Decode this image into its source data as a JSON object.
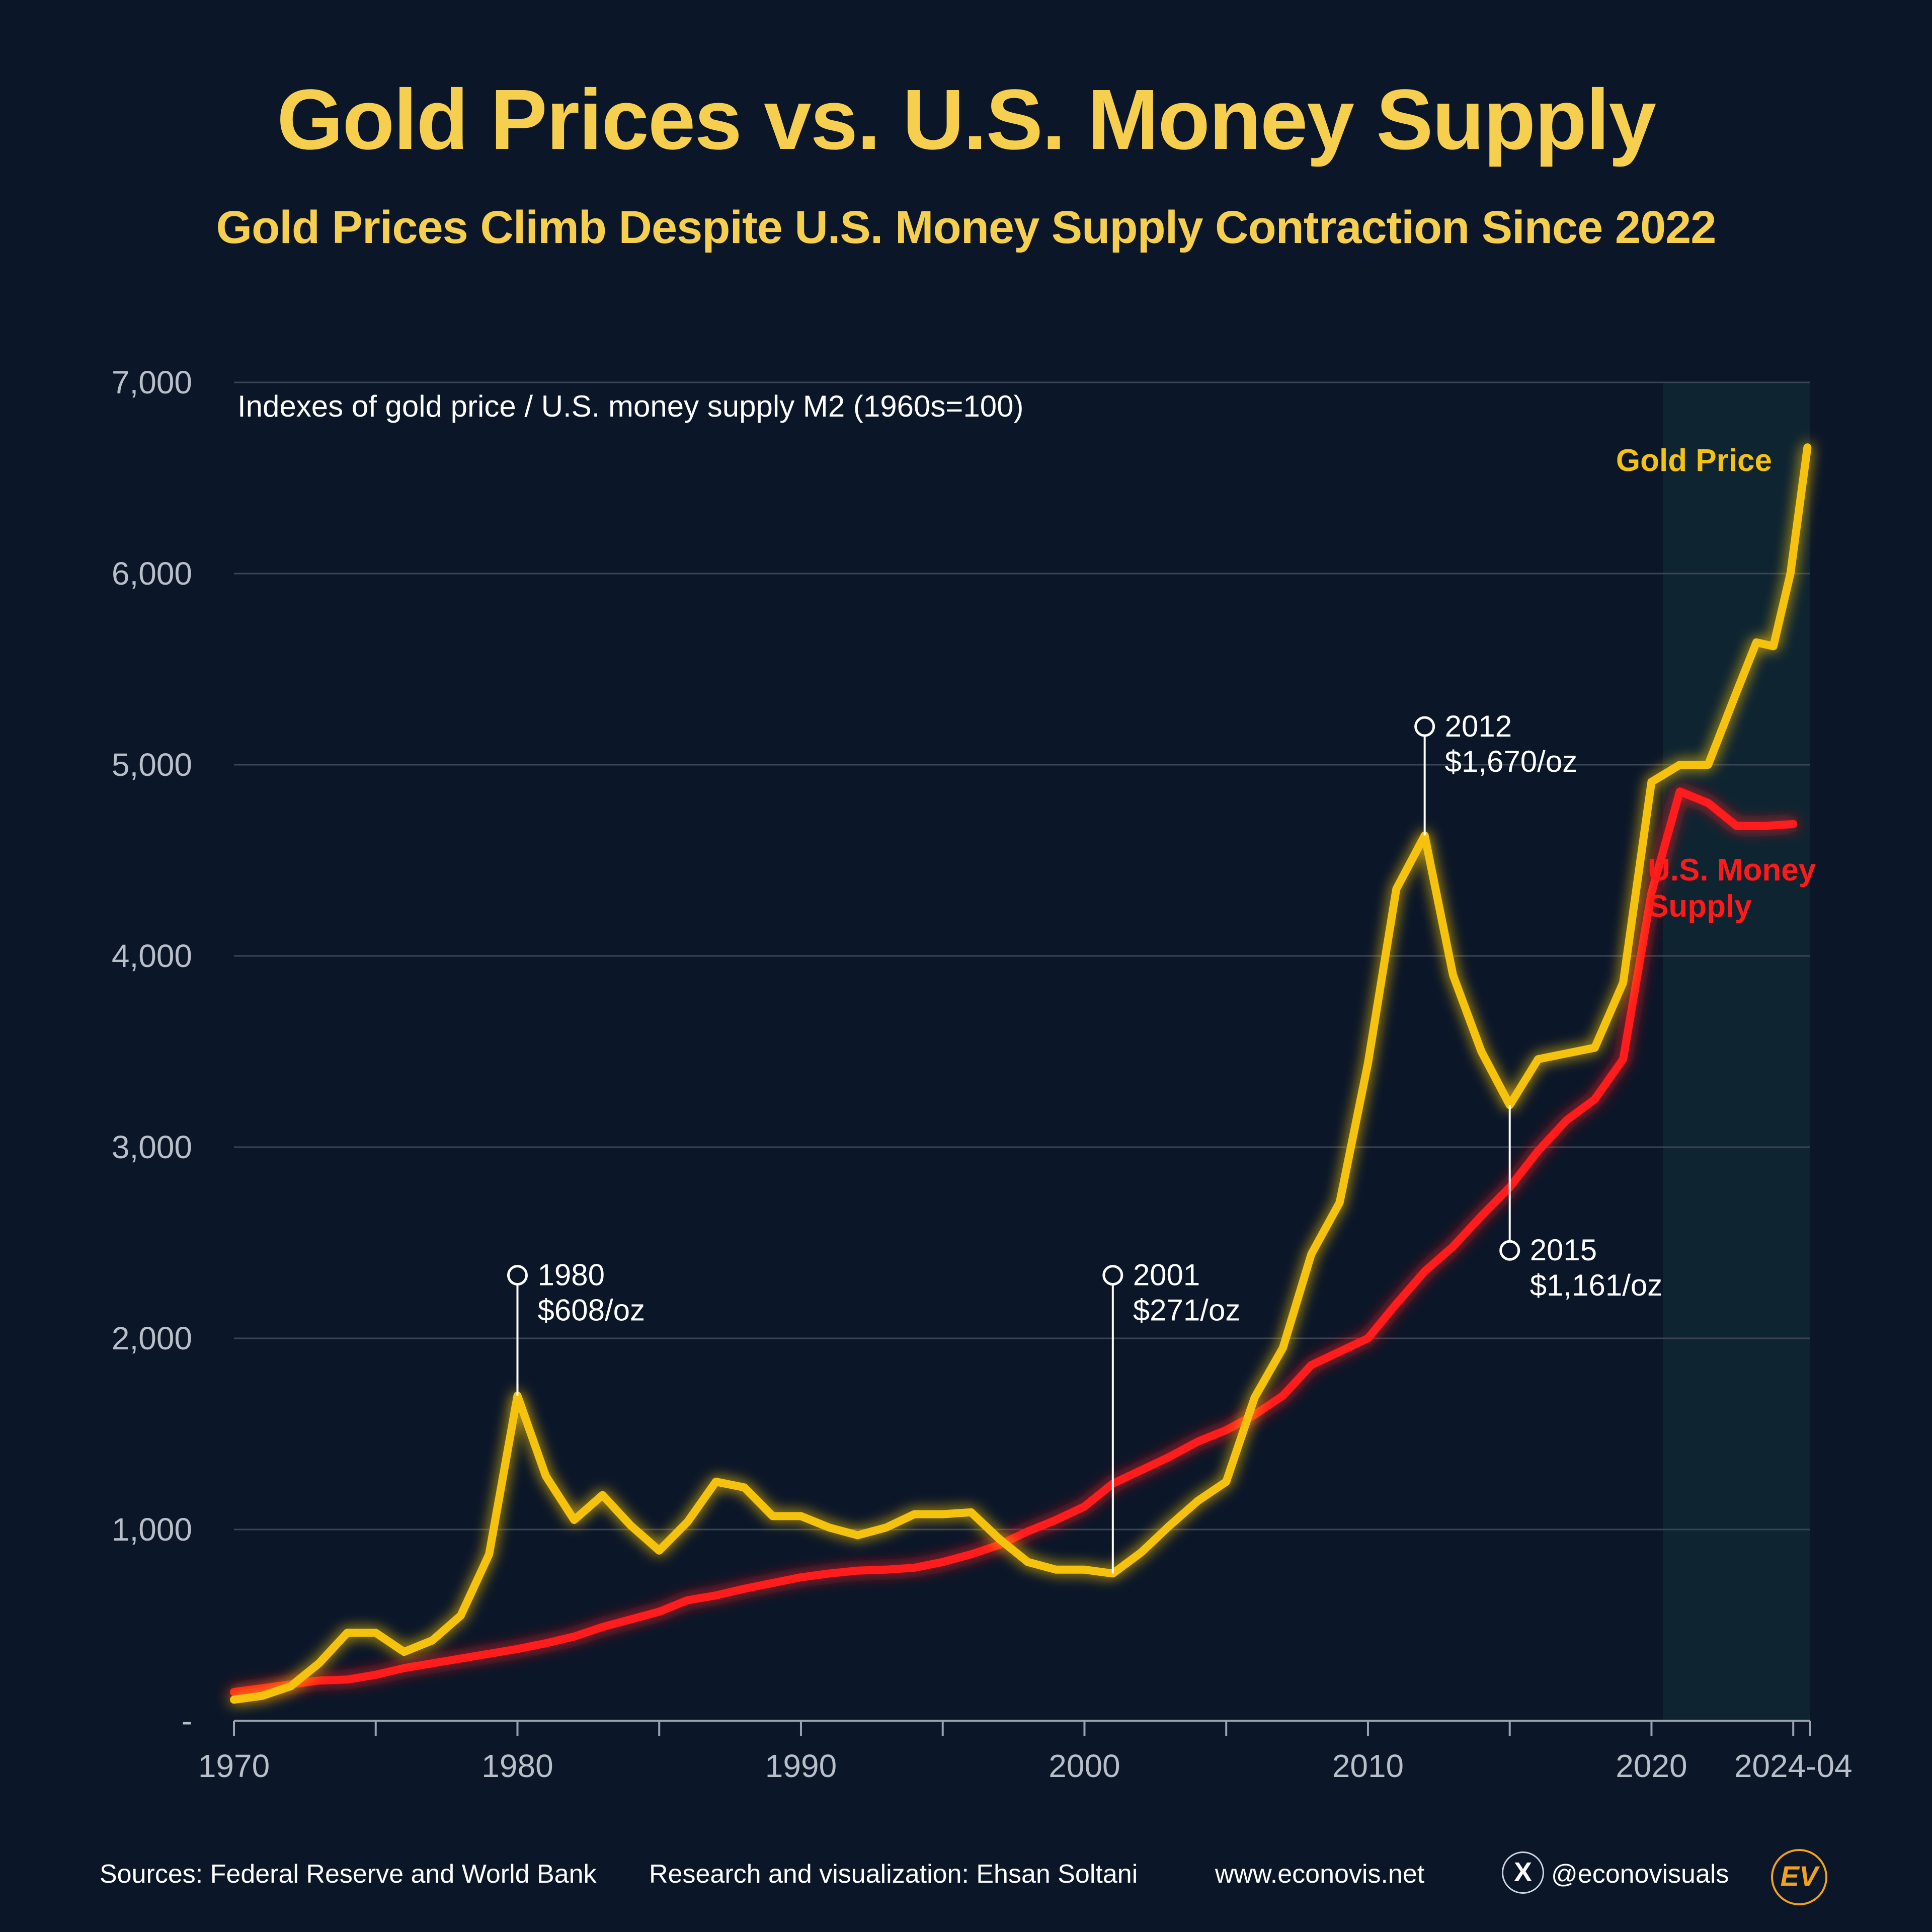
{
  "title": "Gold Prices vs. U.S. Money Supply",
  "subtitle": "Gold Prices Climb Despite U.S. Money Supply Contraction Since 2022",
  "chart_data": {
    "type": "line",
    "ylabel": "Indexes of gold price / U.S. money supply M2 (1960s=100)",
    "ylim": [
      0,
      7000
    ],
    "xlim": [
      1970,
      2025.6
    ],
    "yticks": [
      {
        "value": 0,
        "label": "-"
      },
      {
        "value": 1000,
        "label": "1,000"
      },
      {
        "value": 2000,
        "label": "2,000"
      },
      {
        "value": 3000,
        "label": "3,000"
      },
      {
        "value": 4000,
        "label": "4,000"
      },
      {
        "value": 5000,
        "label": "5,000"
      },
      {
        "value": 6000,
        "label": "6,000"
      },
      {
        "value": 7000,
        "label": "7,000"
      }
    ],
    "xticks": [
      {
        "value": 1970,
        "label": "1970"
      },
      {
        "value": 1980,
        "label": "1980"
      },
      {
        "value": 1990,
        "label": "1990"
      },
      {
        "value": 2000,
        "label": "2000"
      },
      {
        "value": 2010,
        "label": "2010"
      },
      {
        "value": 2020,
        "label": "2020"
      },
      {
        "value": 2025,
        "label": "2024-04"
      }
    ],
    "highlight_range": [
      2020.4,
      2025.6
    ],
    "series": [
      {
        "name": "Gold Price",
        "color": "#f5c211",
        "points": [
          [
            1970,
            110
          ],
          [
            1971,
            130
          ],
          [
            1972,
            180
          ],
          [
            1973,
            300
          ],
          [
            1974,
            460
          ],
          [
            1975,
            460
          ],
          [
            1976,
            360
          ],
          [
            1977,
            420
          ],
          [
            1978,
            550
          ],
          [
            1979,
            870
          ],
          [
            1980,
            1700
          ],
          [
            1981,
            1280
          ],
          [
            1982,
            1050
          ],
          [
            1983,
            1180
          ],
          [
            1984,
            1020
          ],
          [
            1985,
            890
          ],
          [
            1986,
            1040
          ],
          [
            1987,
            1250
          ],
          [
            1988,
            1220
          ],
          [
            1989,
            1070
          ],
          [
            1990,
            1070
          ],
          [
            1991,
            1010
          ],
          [
            1992,
            970
          ],
          [
            1993,
            1010
          ],
          [
            1994,
            1080
          ],
          [
            1995,
            1080
          ],
          [
            1996,
            1090
          ],
          [
            1997,
            950
          ],
          [
            1998,
            830
          ],
          [
            1999,
            790
          ],
          [
            2000,
            790
          ],
          [
            2001,
            770
          ],
          [
            2002,
            880
          ],
          [
            2003,
            1020
          ],
          [
            2004,
            1150
          ],
          [
            2005,
            1250
          ],
          [
            2006,
            1690
          ],
          [
            2007,
            1950
          ],
          [
            2008,
            2440
          ],
          [
            2009,
            2710
          ],
          [
            2010,
            3440
          ],
          [
            2011,
            4350
          ],
          [
            2012,
            4630
          ],
          [
            2013,
            3900
          ],
          [
            2014,
            3500
          ],
          [
            2015,
            3220
          ],
          [
            2016,
            3460
          ],
          [
            2017,
            3490
          ],
          [
            2018,
            3520
          ],
          [
            2019,
            3860
          ],
          [
            2020,
            4910
          ],
          [
            2021,
            5000
          ],
          [
            2022,
            5000
          ],
          [
            2023,
            5380
          ],
          [
            2023.7,
            5640
          ],
          [
            2024.3,
            5620
          ],
          [
            2024.9,
            6000
          ],
          [
            2025.5,
            6660
          ]
        ]
      },
      {
        "name": "U.S. Money Supply",
        "color": "#ff1a1a",
        "points": [
          [
            1970,
            150
          ],
          [
            1971,
            170
          ],
          [
            1972,
            190
          ],
          [
            1973,
            210
          ],
          [
            1974,
            215
          ],
          [
            1975,
            240
          ],
          [
            1976,
            275
          ],
          [
            1977,
            300
          ],
          [
            1978,
            325
          ],
          [
            1979,
            350
          ],
          [
            1980,
            375
          ],
          [
            1981,
            405
          ],
          [
            1982,
            440
          ],
          [
            1983,
            490
          ],
          [
            1984,
            530
          ],
          [
            1985,
            570
          ],
          [
            1986,
            630
          ],
          [
            1987,
            655
          ],
          [
            1988,
            690
          ],
          [
            1989,
            720
          ],
          [
            1990,
            750
          ],
          [
            1991,
            770
          ],
          [
            1992,
            785
          ],
          [
            1993,
            790
          ],
          [
            1994,
            800
          ],
          [
            1995,
            830
          ],
          [
            1996,
            870
          ],
          [
            1997,
            920
          ],
          [
            1998,
            990
          ],
          [
            1999,
            1050
          ],
          [
            2000,
            1120
          ],
          [
            2001,
            1240
          ],
          [
            2002,
            1310
          ],
          [
            2003,
            1380
          ],
          [
            2004,
            1460
          ],
          [
            2005,
            1520
          ],
          [
            2006,
            1600
          ],
          [
            2007,
            1700
          ],
          [
            2008,
            1860
          ],
          [
            2009,
            1930
          ],
          [
            2010,
            2000
          ],
          [
            2011,
            2180
          ],
          [
            2012,
            2350
          ],
          [
            2013,
            2480
          ],
          [
            2014,
            2640
          ],
          [
            2015,
            2790
          ],
          [
            2016,
            2980
          ],
          [
            2017,
            3140
          ],
          [
            2018,
            3250
          ],
          [
            2019,
            3460
          ],
          [
            2020,
            4330
          ],
          [
            2021,
            4860
          ],
          [
            2022,
            4800
          ],
          [
            2023,
            4680
          ],
          [
            2024,
            4680
          ],
          [
            2025,
            4690
          ]
        ]
      }
    ],
    "series_labels": [
      {
        "text": "Gold Price",
        "series": "Gold Price"
      },
      {
        "text": "U.S. Money",
        "series": "U.S. Money Supply"
      },
      {
        "text": "Supply",
        "series": "U.S. Money Supply"
      }
    ],
    "annotations": [
      {
        "series": "Gold Price",
        "year": 1980,
        "value": 1700,
        "marker_value": 2330,
        "label_year": "1980",
        "label_price": "$608/oz",
        "direction": "up"
      },
      {
        "series": "Gold Price",
        "year": 2001,
        "value": 770,
        "marker_value": 2330,
        "label_year": "2001",
        "label_price": "$271/oz",
        "direction": "up"
      },
      {
        "series": "Gold Price",
        "year": 2012,
        "value": 4630,
        "marker_value": 5200,
        "label_year": "2012",
        "label_price": "$1,670/oz",
        "direction": "up"
      },
      {
        "series": "Gold Price",
        "year": 2015,
        "value": 3220,
        "marker_value": 2460,
        "label_year": "2015",
        "label_price": "$1,161/oz",
        "direction": "down"
      }
    ]
  },
  "footer": {
    "sources": "Sources: Federal Reserve and World Bank",
    "credit": "Research and visualization: Ehsan Soltani",
    "website": "www.econovis.net",
    "x_icon": "X",
    "handle": "@econovisuals",
    "logo": "EV"
  },
  "icons": {
    "x_badge": "x-logo-icon",
    "brand_logo": "ev-logo-icon"
  }
}
